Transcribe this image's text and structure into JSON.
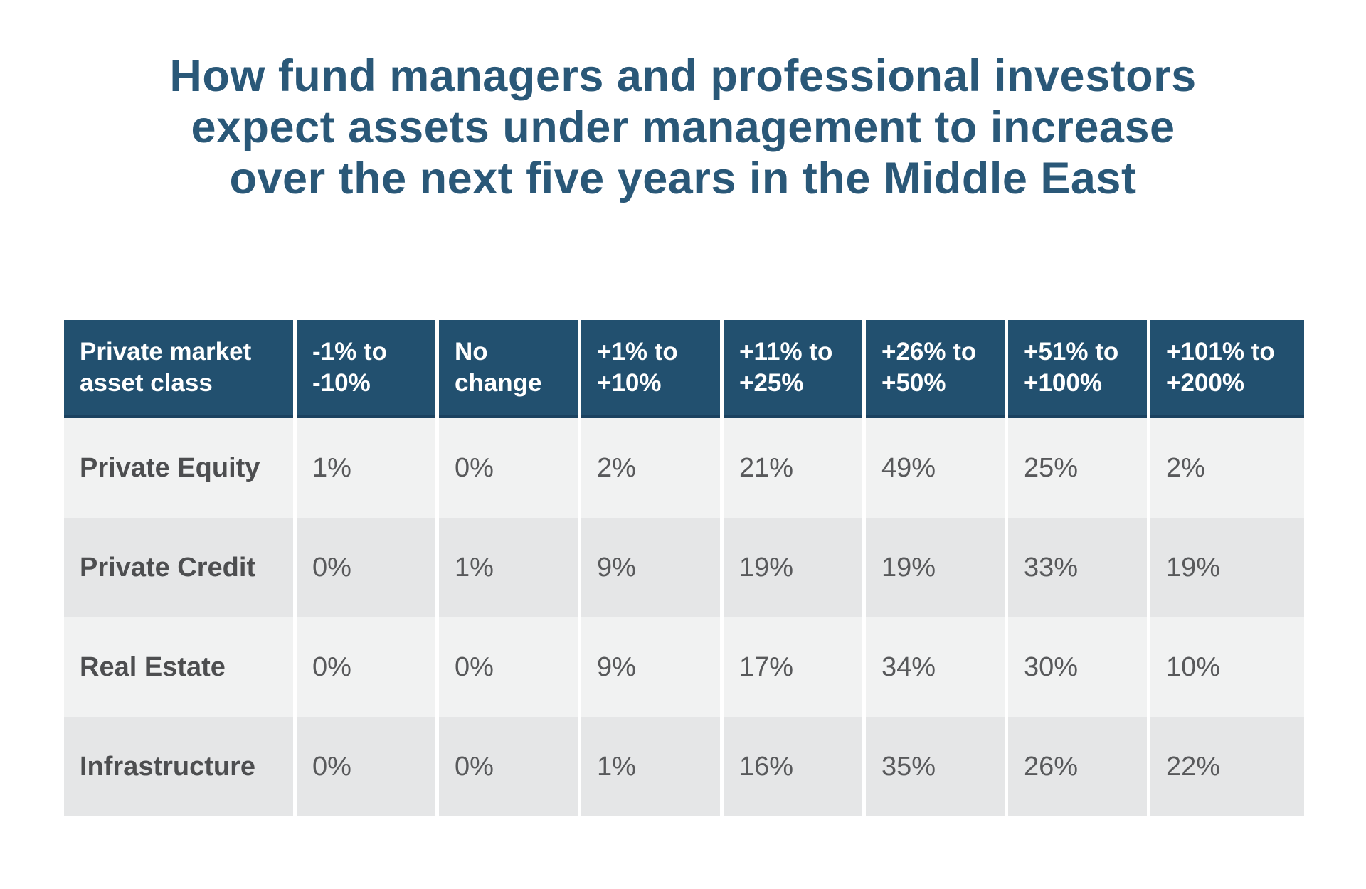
{
  "title": {
    "lines": [
      "How fund managers and professional investors",
      "expect assets under management to increase",
      "over the next five years in the Middle East"
    ]
  },
  "colors": {
    "title_text": "#2a5878",
    "header_bg": "#22506f",
    "header_bottom_border": "#1b4260",
    "header_text": "#ffffff",
    "row_light_bg": "#f1f2f2",
    "row_dark_bg": "#e5e6e7",
    "row_label_text": "#4d4e50",
    "value_text": "#58595b",
    "page_bg": "#ffffff"
  },
  "chart_data": {
    "type": "table",
    "title": "How fund managers and professional investors expect assets under management to increase over the next five years in the Middle East",
    "columns": [
      "Private market asset class",
      "-1% to -10%",
      "No change",
      "+1% to +10%",
      "+11% to +25%",
      "+26% to +50%",
      "+51% to +100%",
      "+101% to +200%"
    ],
    "rows": [
      {
        "label": "Private Equity",
        "values": [
          "1%",
          "0%",
          "2%",
          "21%",
          "49%",
          "25%",
          "2%"
        ]
      },
      {
        "label": "Private Credit",
        "values": [
          "0%",
          "1%",
          "9%",
          "19%",
          "19%",
          "33%",
          "19%"
        ]
      },
      {
        "label": "Real Estate",
        "values": [
          "0%",
          "0%",
          "9%",
          "17%",
          "34%",
          "30%",
          "10%"
        ]
      },
      {
        "label": "Infrastructure",
        "values": [
          "0%",
          "0%",
          "1%",
          "16%",
          "35%",
          "26%",
          "22%"
        ]
      }
    ],
    "layout": {
      "header_position": "top-row",
      "row_striping": "alternating light/dark gray",
      "grid": "white vertical gaps between columns"
    }
  }
}
